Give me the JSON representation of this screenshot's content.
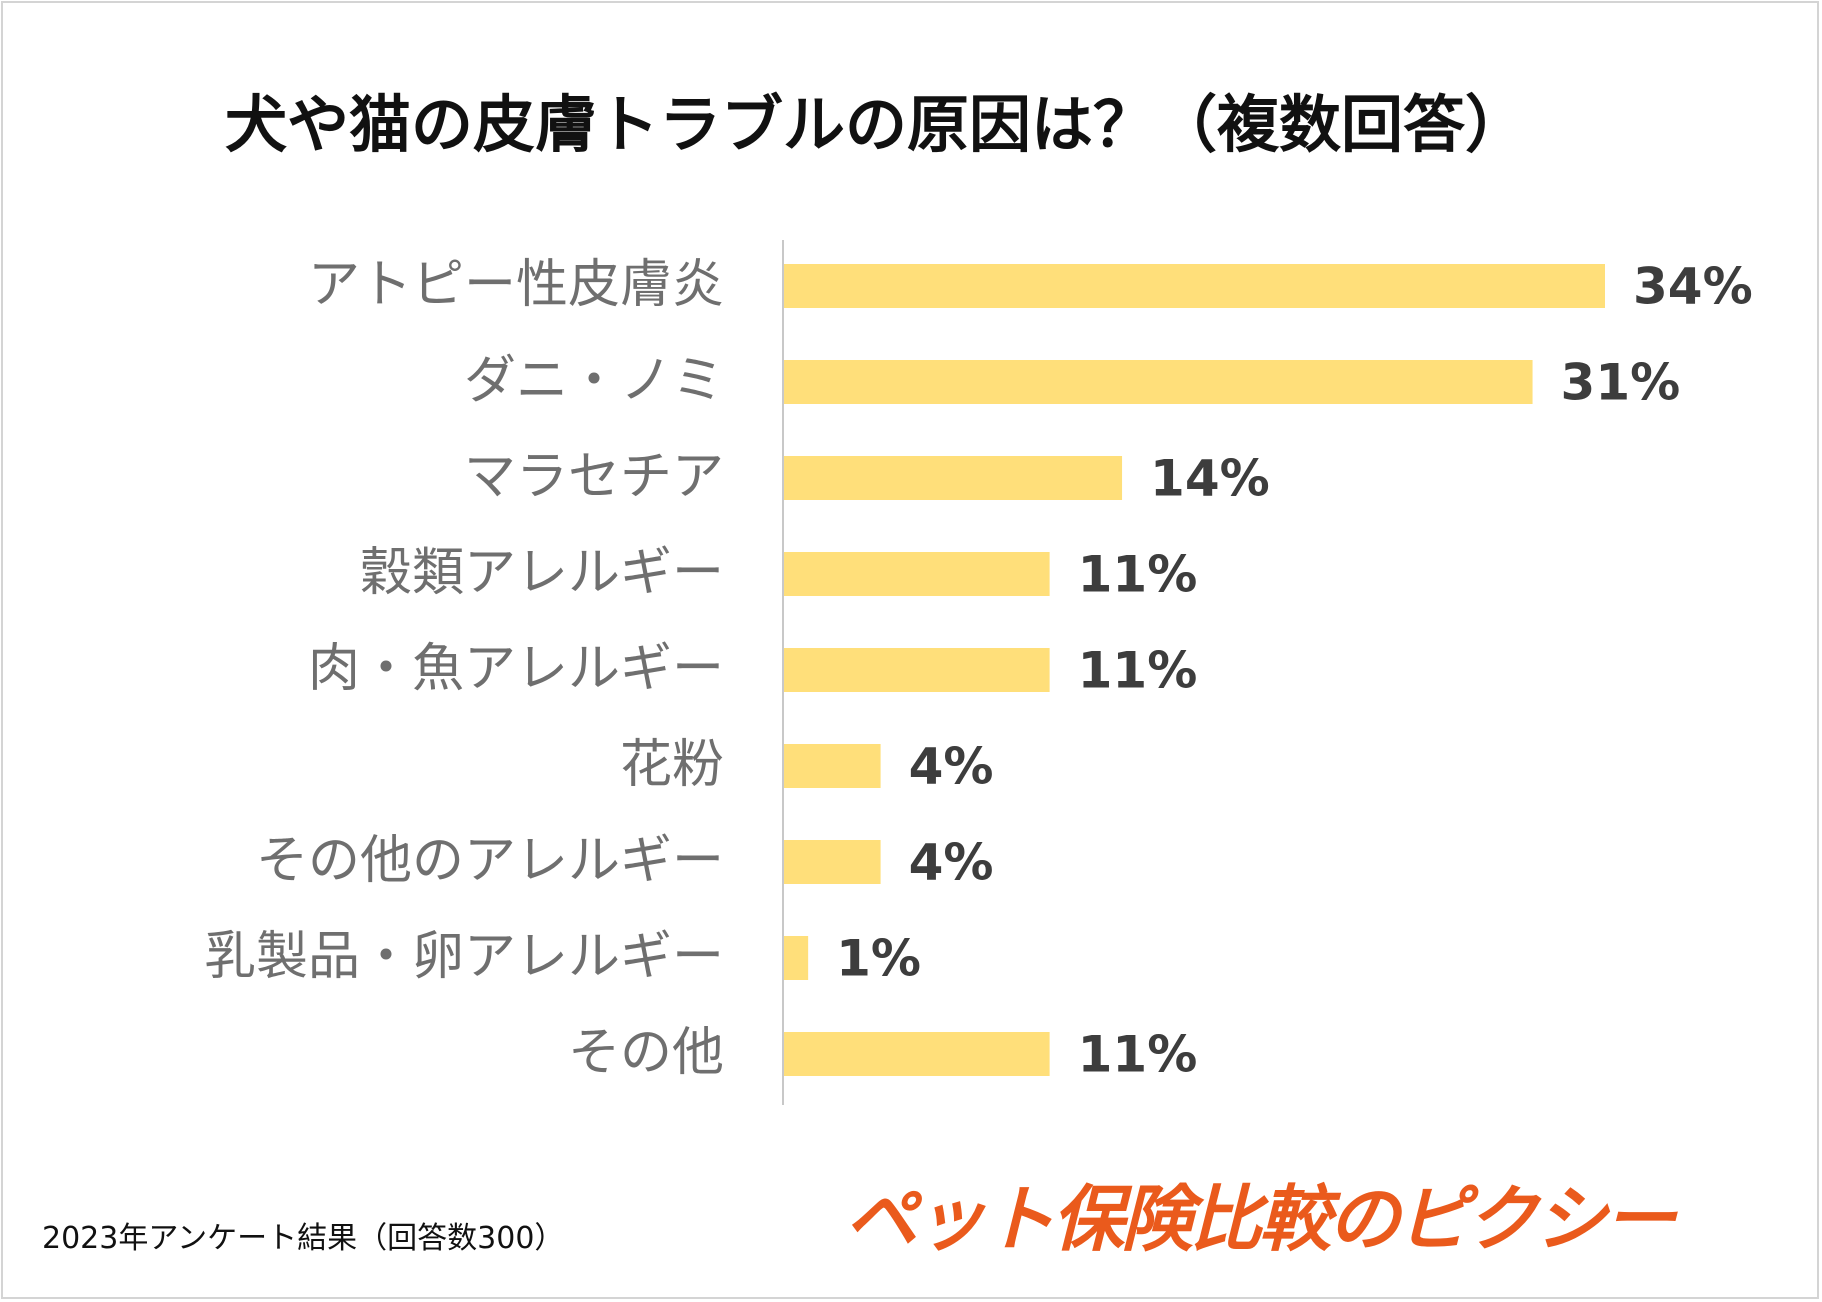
{
  "colors": {
    "bar": "#ffdf7a",
    "axis": "#c8c8c8",
    "logo": "#ea5a1c"
  },
  "chart_data": {
    "type": "bar",
    "orientation": "horizontal",
    "title": "犬や猫の皮膚トラブルの原因は？（複数回答）",
    "categories": [
      "アトピー性皮膚炎",
      "ダニ・ノミ",
      "マラセチア",
      "穀類アレルギー",
      "肉・魚アレルギー",
      "花粉",
      "その他のアレルギー",
      "乳製品・卵アレルギー",
      "その他"
    ],
    "values": [
      34,
      31,
      14,
      11,
      11,
      4,
      4,
      1,
      11
    ],
    "value_labels": [
      "34%",
      "31%",
      "14%",
      "11%",
      "11%",
      "4%",
      "4%",
      "1%",
      "11%"
    ],
    "unit": "%",
    "xlim": [
      0,
      34
    ],
    "grid": false,
    "legend": "none"
  },
  "footnote": "2023年アンケート結果（回答数300）",
  "logo_text": "ペット保険比較のピクシー"
}
